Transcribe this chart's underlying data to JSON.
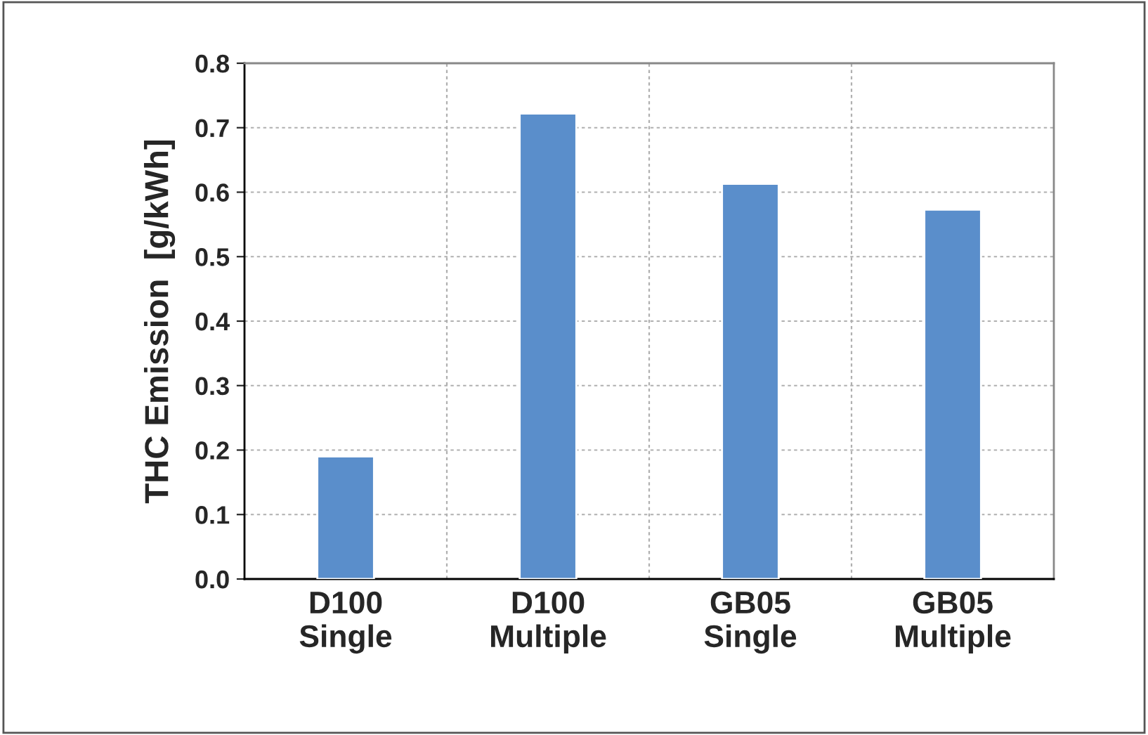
{
  "chart_data": {
    "type": "bar",
    "ylabel": "THC Emission  [g/kWh]",
    "categories": [
      "D100\nSingle",
      "D100\nMultiple",
      "GB05\nSingle",
      "GB05\nMultiple"
    ],
    "values": [
      0.19,
      0.722,
      0.613,
      0.573
    ],
    "color": "#5a8ecb",
    "ylim": [
      0,
      0.8
    ],
    "yticks": [
      {
        "value": 0,
        "label": "0.0"
      },
      0.1,
      0.2,
      0.3,
      0.4,
      0.5,
      0.6,
      0.7,
      0.8
    ],
    "grid": true
  }
}
